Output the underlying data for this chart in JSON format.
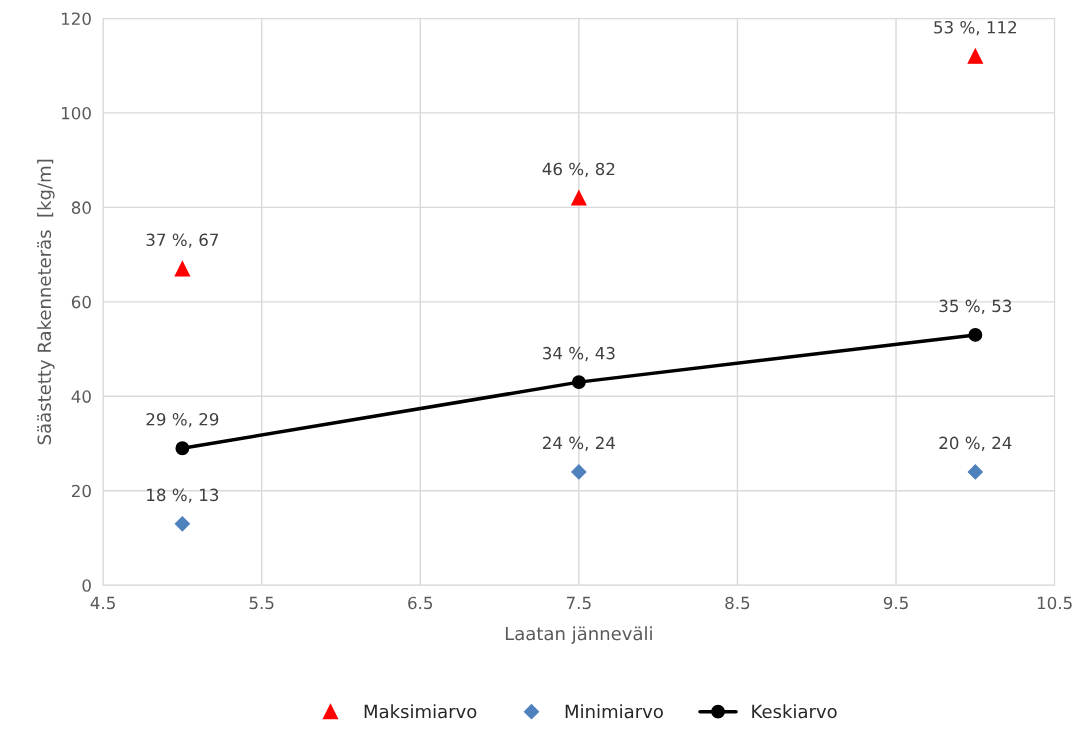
{
  "chart_data": {
    "type": "scatter",
    "xlabel": "Laatan jänneväli",
    "ylabel": "Säästetty Rakenneteräs  [kg/m]",
    "xlim": [
      4.5,
      10.5
    ],
    "xticks": [
      4.5,
      5.5,
      6.5,
      7.5,
      8.5,
      9.5,
      10.5
    ],
    "ylim": [
      0,
      120
    ],
    "yticks": [
      0,
      20,
      40,
      60,
      80,
      100,
      120
    ],
    "grid": true,
    "legend": "bottom",
    "series": [
      {
        "name": "Maksimiarvo",
        "marker": "triangle",
        "color": "#ff0000",
        "x": [
          5,
          7.5,
          10
        ],
        "values": [
          67,
          82,
          112
        ],
        "value_labels": [
          "37 %, 67",
          "46 %, 82",
          "53 %, 112"
        ]
      },
      {
        "name": "Minimiarvo",
        "marker": "diamond",
        "color": "#4f81bd",
        "x": [
          5,
          7.5,
          10
        ],
        "values": [
          13,
          24,
          24
        ],
        "value_labels": [
          "18 %, 13",
          "24 %, 24",
          "20 %, 24"
        ]
      },
      {
        "name": "Keskiarvo",
        "type": "line",
        "marker": "circle",
        "line_style": "solid",
        "color": "#000000",
        "x": [
          5,
          7.5,
          10
        ],
        "values": [
          29,
          43,
          53
        ],
        "value_labels": [
          "29 %, 29",
          "34 %, 43",
          "35 %, 53"
        ]
      }
    ]
  }
}
